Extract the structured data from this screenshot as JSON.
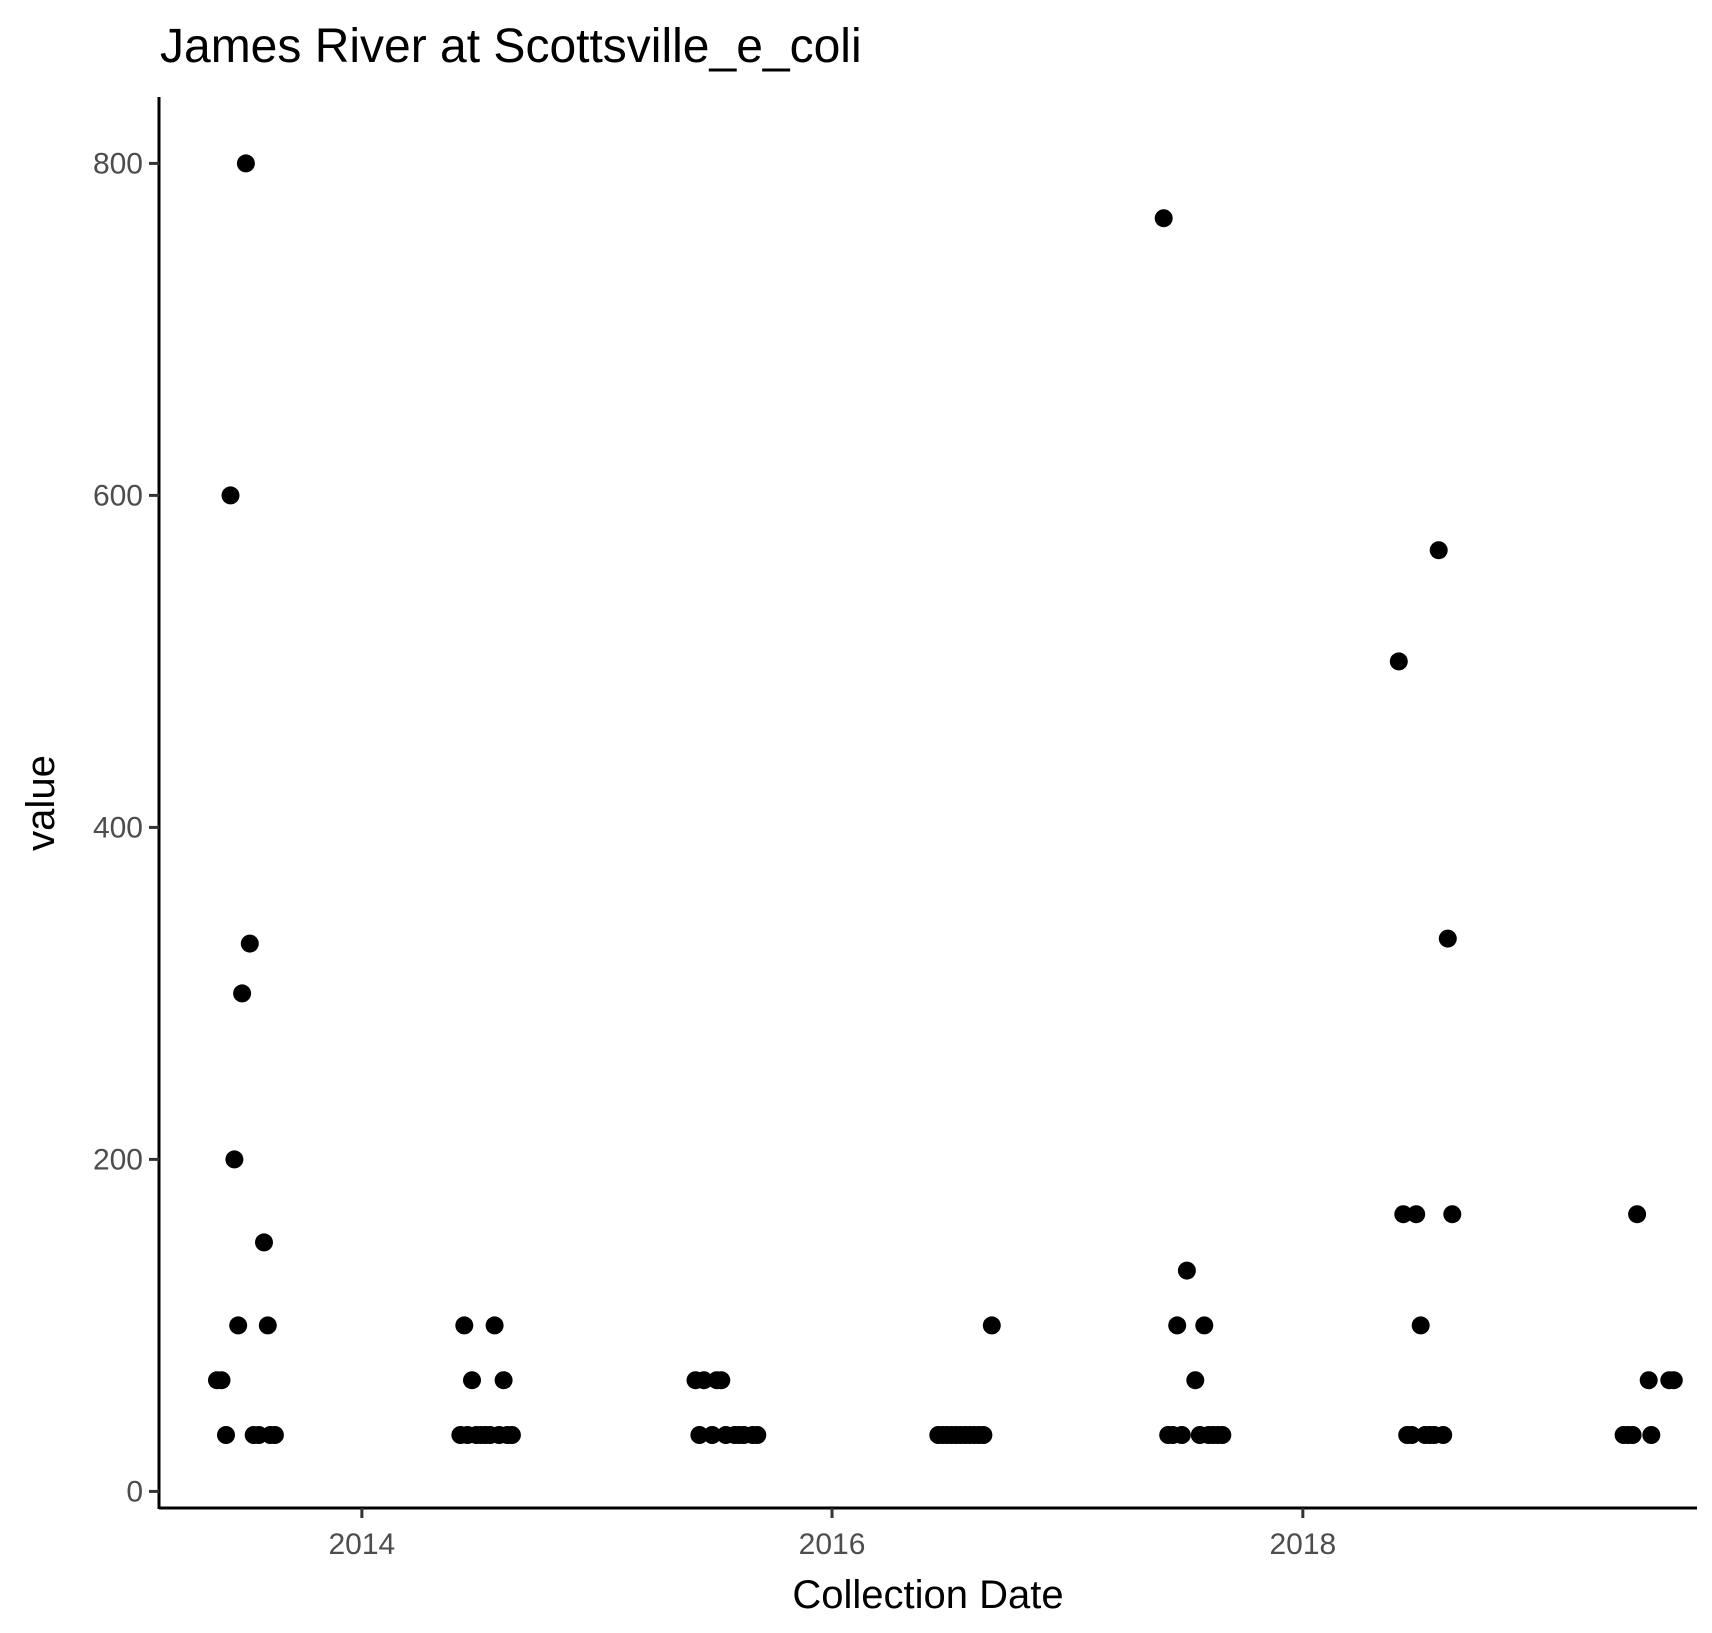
{
  "chart_data": {
    "type": "scatter",
    "title": "James River at Scottsville_e_coli",
    "xlabel": "Collection Date",
    "ylabel": "value",
    "x_axis_type": "date",
    "xlim": [
      "2013-02-20",
      "2019-09-05"
    ],
    "ylim": [
      -10,
      840
    ],
    "x_ticks": [
      {
        "value": "2014-01-01",
        "label": "2014"
      },
      {
        "value": "2016-01-01",
        "label": "2016"
      },
      {
        "value": "2018-01-01",
        "label": "2018"
      }
    ],
    "y_ticks": [
      0,
      200,
      400,
      600,
      800
    ],
    "grid": false,
    "legend": "none",
    "point_color": "#000000",
    "points": [
      {
        "x": "2013-05-21",
        "y": 67
      },
      {
        "x": "2013-05-28",
        "y": 67
      },
      {
        "x": "2013-06-04",
        "y": 34
      },
      {
        "x": "2013-06-11",
        "y": 600
      },
      {
        "x": "2013-06-17",
        "y": 200
      },
      {
        "x": "2013-06-23",
        "y": 100
      },
      {
        "x": "2013-06-29",
        "y": 300
      },
      {
        "x": "2013-07-05",
        "y": 800
      },
      {
        "x": "2013-07-11",
        "y": 330
      },
      {
        "x": "2013-07-17",
        "y": 34
      },
      {
        "x": "2013-07-25",
        "y": 34
      },
      {
        "x": "2013-08-02",
        "y": 150
      },
      {
        "x": "2013-08-08",
        "y": 100
      },
      {
        "x": "2013-08-12",
        "y": 34
      },
      {
        "x": "2013-08-19",
        "y": 34
      },
      {
        "x": "2014-06-03",
        "y": 34
      },
      {
        "x": "2014-06-09",
        "y": 100
      },
      {
        "x": "2014-06-14",
        "y": 34
      },
      {
        "x": "2014-06-21",
        "y": 67
      },
      {
        "x": "2014-06-28",
        "y": 34
      },
      {
        "x": "2014-07-05",
        "y": 34
      },
      {
        "x": "2014-07-12",
        "y": 34
      },
      {
        "x": "2014-07-19",
        "y": 34
      },
      {
        "x": "2014-07-26",
        "y": 100
      },
      {
        "x": "2014-08-02",
        "y": 34
      },
      {
        "x": "2014-08-09",
        "y": 67
      },
      {
        "x": "2014-08-15",
        "y": 34
      },
      {
        "x": "2014-08-22",
        "y": 34
      },
      {
        "x": "2015-06-03",
        "y": 67
      },
      {
        "x": "2015-06-09",
        "y": 34
      },
      {
        "x": "2015-06-16",
        "y": 67
      },
      {
        "x": "2015-06-29",
        "y": 34
      },
      {
        "x": "2015-07-06",
        "y": 67
      },
      {
        "x": "2015-07-13",
        "y": 67
      },
      {
        "x": "2015-07-20",
        "y": 34
      },
      {
        "x": "2015-08-03",
        "y": 34
      },
      {
        "x": "2015-08-10",
        "y": 34
      },
      {
        "x": "2015-08-17",
        "y": 34
      },
      {
        "x": "2015-08-31",
        "y": 34
      },
      {
        "x": "2015-09-07",
        "y": 34
      },
      {
        "x": "2016-06-14",
        "y": 34
      },
      {
        "x": "2016-06-21",
        "y": 34
      },
      {
        "x": "2016-06-28",
        "y": 34
      },
      {
        "x": "2016-07-05",
        "y": 34
      },
      {
        "x": "2016-07-12",
        "y": 34
      },
      {
        "x": "2016-07-19",
        "y": 34
      },
      {
        "x": "2016-07-26",
        "y": 34
      },
      {
        "x": "2016-08-02",
        "y": 34
      },
      {
        "x": "2016-08-09",
        "y": 34
      },
      {
        "x": "2016-08-16",
        "y": 34
      },
      {
        "x": "2016-08-23",
        "y": 34
      },
      {
        "x": "2016-09-05",
        "y": 100
      },
      {
        "x": "2017-05-30",
        "y": 767
      },
      {
        "x": "2017-06-06",
        "y": 34
      },
      {
        "x": "2017-06-13",
        "y": 34
      },
      {
        "x": "2017-06-20",
        "y": 100
      },
      {
        "x": "2017-06-27",
        "y": 34
      },
      {
        "x": "2017-07-05",
        "y": 133
      },
      {
        "x": "2017-07-18",
        "y": 67
      },
      {
        "x": "2017-07-25",
        "y": 34
      },
      {
        "x": "2017-08-01",
        "y": 100
      },
      {
        "x": "2017-08-08",
        "y": 34
      },
      {
        "x": "2017-08-15",
        "y": 34
      },
      {
        "x": "2017-08-22",
        "y": 34
      },
      {
        "x": "2017-08-29",
        "y": 34
      },
      {
        "x": "2018-05-30",
        "y": 500
      },
      {
        "x": "2018-06-06",
        "y": 167
      },
      {
        "x": "2018-06-12",
        "y": 34
      },
      {
        "x": "2018-06-19",
        "y": 34
      },
      {
        "x": "2018-06-26",
        "y": 167
      },
      {
        "x": "2018-07-03",
        "y": 100
      },
      {
        "x": "2018-07-10",
        "y": 34
      },
      {
        "x": "2018-07-17",
        "y": 34
      },
      {
        "x": "2018-07-24",
        "y": 34
      },
      {
        "x": "2018-07-31",
        "y": 567
      },
      {
        "x": "2018-08-07",
        "y": 34
      },
      {
        "x": "2018-08-14",
        "y": 333
      },
      {
        "x": "2018-08-21",
        "y": 167
      },
      {
        "x": "2019-05-14",
        "y": 34
      },
      {
        "x": "2019-05-21",
        "y": 34
      },
      {
        "x": "2019-05-28",
        "y": 34
      },
      {
        "x": "2019-06-04",
        "y": 167
      },
      {
        "x": "2019-06-22",
        "y": 67
      },
      {
        "x": "2019-06-26",
        "y": 34
      },
      {
        "x": "2019-07-24",
        "y": 67
      },
      {
        "x": "2019-07-31",
        "y": 67
      }
    ]
  }
}
